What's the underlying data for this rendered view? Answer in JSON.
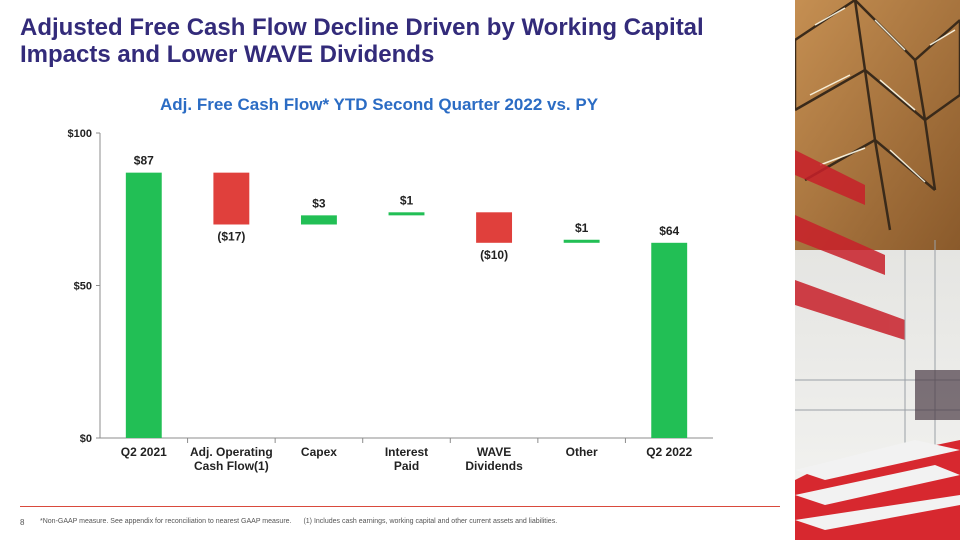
{
  "title": "Adjusted Free Cash Flow Decline Driven by Working Capital Impacts and Lower WAVE Dividends",
  "subtitle": "Adj. Free Cash Flow* YTD Second Quarter 2022 vs. PY",
  "page_number": "8",
  "footnotes": [
    "*Non-GAAP measure. See appendix for reconciliation to nearest GAAP measure.",
    "(1) Includes cash earnings, working capital and other current assets and liabilities."
  ],
  "colors": {
    "positive": "#22bf55",
    "negative": "#e0403c",
    "title": "#332b7a",
    "subtitle": "#2b6cc4",
    "rule": "#d94a3d"
  },
  "chart_data": {
    "type": "bar",
    "subtype": "waterfall",
    "title": "Adj. Free Cash Flow* YTD Second Quarter 2022 vs. PY",
    "ylim": [
      0,
      100
    ],
    "yticks": [
      0,
      50,
      100
    ],
    "ytick_labels": [
      "$0",
      "$50",
      "$100"
    ],
    "grid": false,
    "categories": [
      [
        "Q2 2021"
      ],
      [
        "Adj. Operating",
        "Cash Flow(1)"
      ],
      [
        "Capex"
      ],
      [
        "Interest",
        "Paid"
      ],
      [
        "WAVE",
        "Dividends"
      ],
      [
        "Other"
      ],
      [
        "Q2 2022"
      ]
    ],
    "bars": [
      {
        "kind": "total",
        "start": 0,
        "end": 87,
        "label": "$87"
      },
      {
        "kind": "change",
        "start": 87,
        "end": 70,
        "label": "($17)"
      },
      {
        "kind": "change",
        "start": 70,
        "end": 73,
        "label": "$3"
      },
      {
        "kind": "change",
        "start": 73,
        "end": 74,
        "label": "$1"
      },
      {
        "kind": "change",
        "start": 74,
        "end": 64,
        "label": "($10)"
      },
      {
        "kind": "change",
        "start": 64,
        "end": 65,
        "label": "$1"
      },
      {
        "kind": "total",
        "start": 0,
        "end": 64,
        "label": "$64"
      }
    ]
  }
}
